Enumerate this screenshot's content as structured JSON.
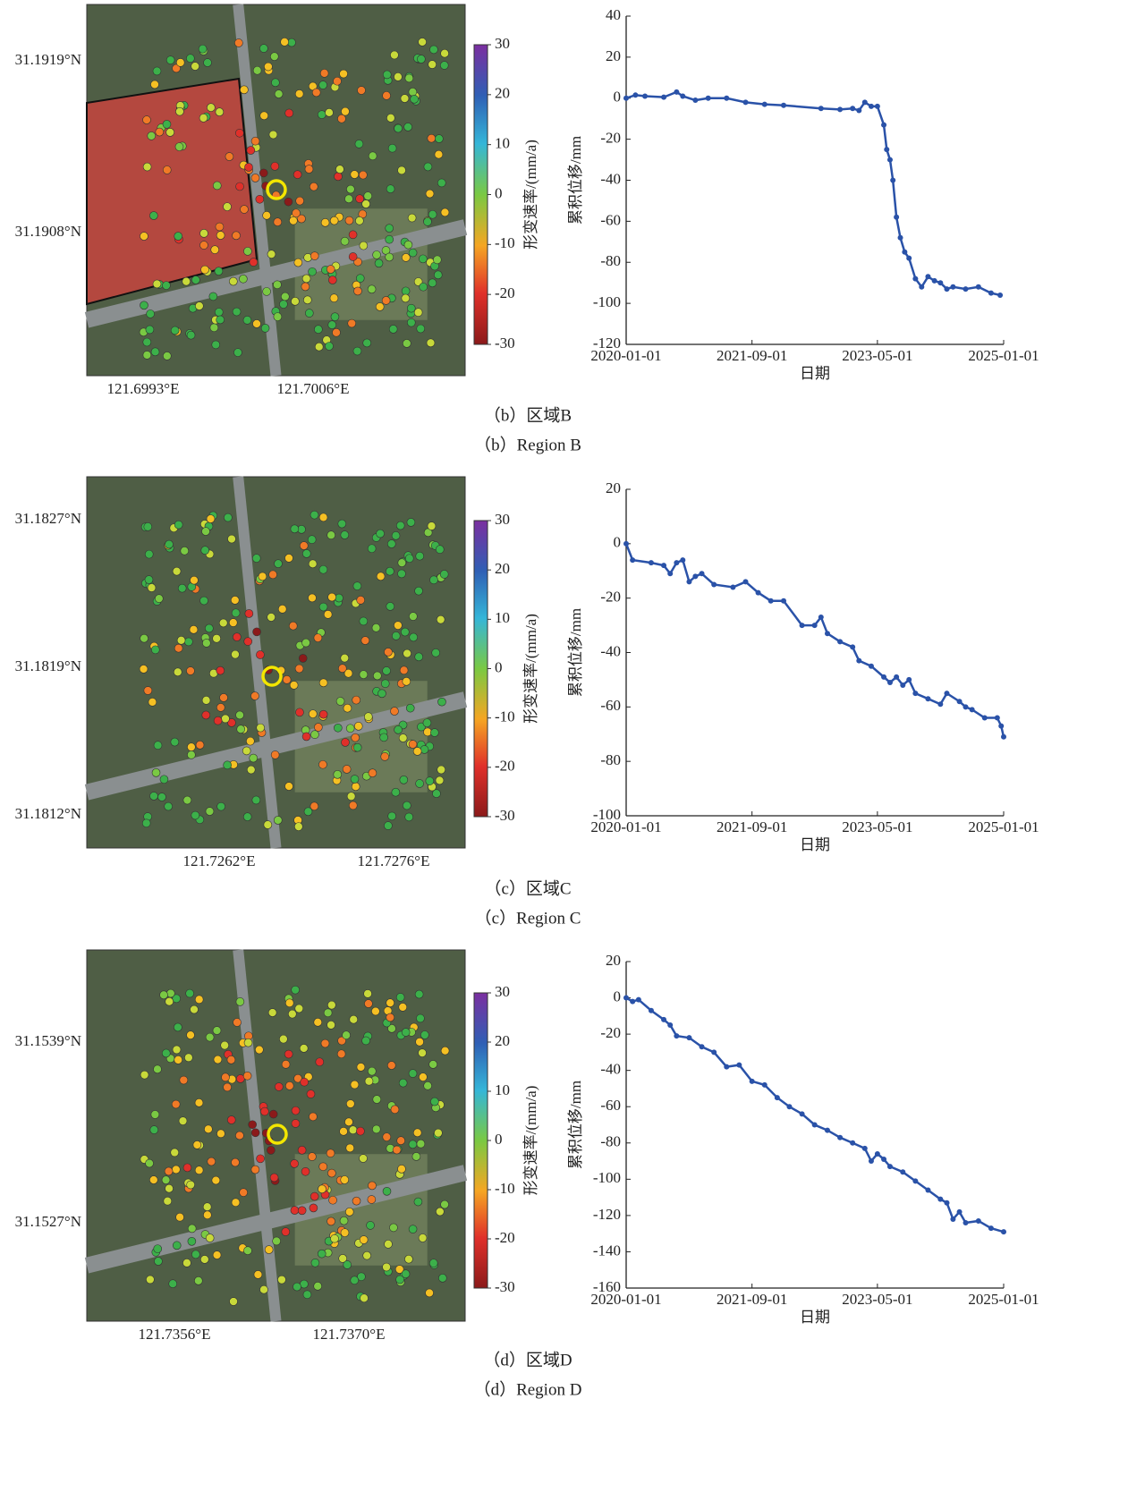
{
  "chart_data": [
    {
      "type": "line",
      "xlabel": "日期",
      "ylabel": "累积位移/mm",
      "color": "#2a52a8",
      "xlim": [
        "2020-01-01",
        "2025-01-01"
      ],
      "xticks": [
        "2020-01-01",
        "2021-09-01",
        "2023-05-01",
        "2025-01-01"
      ],
      "ylim": [
        -120,
        40
      ],
      "yticks": [
        -120,
        -100,
        -80,
        -60,
        -40,
        -20,
        0,
        20,
        40
      ],
      "x": [
        "2020-01-01",
        "2020-02-15",
        "2020-04-01",
        "2020-07-01",
        "2020-09-01",
        "2020-10-01",
        "2020-12-01",
        "2021-02-01",
        "2021-05-01",
        "2021-08-01",
        "2021-11-01",
        "2022-02-01",
        "2022-08-01",
        "2022-11-01",
        "2023-01-01",
        "2023-02-01",
        "2023-03-01",
        "2023-04-01",
        "2023-05-01",
        "2023-06-01",
        "2023-06-15",
        "2023-07-01",
        "2023-07-15",
        "2023-08-01",
        "2023-08-20",
        "2023-09-10",
        "2023-10-01",
        "2023-11-01",
        "2023-12-01",
        "2024-01-01",
        "2024-02-01",
        "2024-03-01",
        "2024-04-01",
        "2024-05-01",
        "2024-07-01",
        "2024-09-01",
        "2024-11-01",
        "2024-12-15"
      ],
      "values": [
        0,
        1.5,
        1,
        0.5,
        3,
        1,
        -1,
        0,
        0,
        -2,
        -3,
        -3.5,
        -5,
        -5.5,
        -5,
        -6,
        -2,
        -4,
        -4,
        -13,
        -25,
        -30,
        -40,
        -58,
        -68,
        -75,
        -78,
        -88,
        -92,
        -87,
        -89,
        -90,
        -93,
        -92,
        -93,
        -92,
        -95,
        -96
      ]
    },
    {
      "type": "line",
      "xlabel": "日期",
      "ylabel": "累积位移/mm",
      "color": "#2a52a8",
      "xlim": [
        "2020-01-01",
        "2025-01-01"
      ],
      "xticks": [
        "2020-01-01",
        "2021-09-01",
        "2023-05-01",
        "2025-01-01"
      ],
      "ylim": [
        -100,
        20
      ],
      "yticks": [
        -100,
        -80,
        -60,
        -40,
        -20,
        0,
        20
      ],
      "x": [
        "2020-01-01",
        "2020-02-01",
        "2020-05-01",
        "2020-07-01",
        "2020-08-01",
        "2020-09-01",
        "2020-10-01",
        "2020-11-01",
        "2020-12-01",
        "2021-01-01",
        "2021-03-01",
        "2021-06-01",
        "2021-08-01",
        "2021-10-01",
        "2021-12-01",
        "2022-02-01",
        "2022-05-01",
        "2022-07-01",
        "2022-08-01",
        "2022-09-01",
        "2022-11-01",
        "2023-01-01",
        "2023-02-01",
        "2023-04-01",
        "2023-06-01",
        "2023-07-01",
        "2023-08-01",
        "2023-09-01",
        "2023-10-01",
        "2023-11-01",
        "2024-01-01",
        "2024-03-01",
        "2024-04-01",
        "2024-06-01",
        "2024-07-01",
        "2024-08-01",
        "2024-10-01",
        "2024-12-01",
        "2024-12-20",
        "2025-01-01"
      ],
      "values": [
        0,
        -6,
        -7,
        -8,
        -11,
        -7,
        -6,
        -14,
        -12,
        -11,
        -15,
        -16,
        -14,
        -18,
        -21,
        -21,
        -30,
        -30,
        -27,
        -33,
        -36,
        -38,
        -43,
        -45,
        -49,
        -51,
        -49,
        -52,
        -50,
        -55,
        -57,
        -59,
        -55,
        -58,
        -60,
        -61,
        -64,
        -64,
        -67,
        -71
      ]
    },
    {
      "type": "line",
      "xlabel": "日期",
      "ylabel": "累积位移/mm",
      "color": "#2a52a8",
      "xlim": [
        "2020-01-01",
        "2025-01-01"
      ],
      "xticks": [
        "2020-01-01",
        "2021-09-01",
        "2023-05-01",
        "2025-01-01"
      ],
      "ylim": [
        -160,
        20
      ],
      "yticks": [
        -160,
        -140,
        -120,
        -100,
        -80,
        -60,
        -40,
        -20,
        0,
        20
      ],
      "x": [
        "2020-01-01",
        "2020-02-01",
        "2020-03-01",
        "2020-05-01",
        "2020-07-01",
        "2020-08-01",
        "2020-09-01",
        "2020-11-01",
        "2021-01-01",
        "2021-03-01",
        "2021-05-01",
        "2021-07-01",
        "2021-09-01",
        "2021-11-01",
        "2022-01-01",
        "2022-03-01",
        "2022-05-01",
        "2022-07-01",
        "2022-09-01",
        "2022-11-01",
        "2023-01-01",
        "2023-03-01",
        "2023-04-01",
        "2023-05-01",
        "2023-06-01",
        "2023-07-01",
        "2023-09-01",
        "2023-11-01",
        "2024-01-01",
        "2024-03-01",
        "2024-04-01",
        "2024-05-01",
        "2024-06-01",
        "2024-07-01",
        "2024-09-01",
        "2024-11-01",
        "2025-01-01"
      ],
      "values": [
        0,
        -2,
        -1,
        -7,
        -12,
        -15,
        -21,
        -22,
        -27,
        -30,
        -38,
        -37,
        -46,
        -48,
        -55,
        -60,
        -64,
        -70,
        -73,
        -77,
        -80,
        -83,
        -90,
        -86,
        -89,
        -93,
        -96,
        -101,
        -106,
        -111,
        -113,
        -122,
        -118,
        -124,
        -123,
        -127,
        -129
      ]
    }
  ],
  "maps": [
    {
      "lat_labels": [
        "31.1919°N",
        "31.1908°N"
      ],
      "lon_labels": [
        "121.6993°E",
        "121.7006°E"
      ],
      "colorbar": {
        "label": "形变速率/(mm/a)",
        "lim": [
          -30,
          30
        ],
        "ticks": [
          -30,
          -20,
          -10,
          0,
          10,
          20,
          30
        ]
      }
    },
    {
      "lat_labels": [
        "31.1827°N",
        "31.1819°N",
        "31.1812°N"
      ],
      "lon_labels": [
        "121.7262°E",
        "121.7276°E"
      ],
      "colorbar": {
        "label": "形变速率/(mm/a)",
        "lim": [
          -30,
          30
        ],
        "ticks": [
          -30,
          -20,
          -10,
          0,
          10,
          20,
          30
        ]
      }
    },
    {
      "lat_labels": [
        "31.1539°N",
        "31.1527°N"
      ],
      "lon_labels": [
        "121.7356°E",
        "121.7370°E"
      ],
      "colorbar": {
        "label": "形变速率/(mm/a)",
        "lim": [
          -30,
          30
        ],
        "ticks": [
          -30,
          -20,
          -10,
          0,
          10,
          20,
          30
        ]
      }
    }
  ],
  "captions": [
    {
      "cn": "（b）区域B",
      "en": "（b）Region B"
    },
    {
      "cn": "（c）区域C",
      "en": "（c）Region C"
    },
    {
      "cn": "（d）区域D",
      "en": "（d）Region D"
    }
  ]
}
